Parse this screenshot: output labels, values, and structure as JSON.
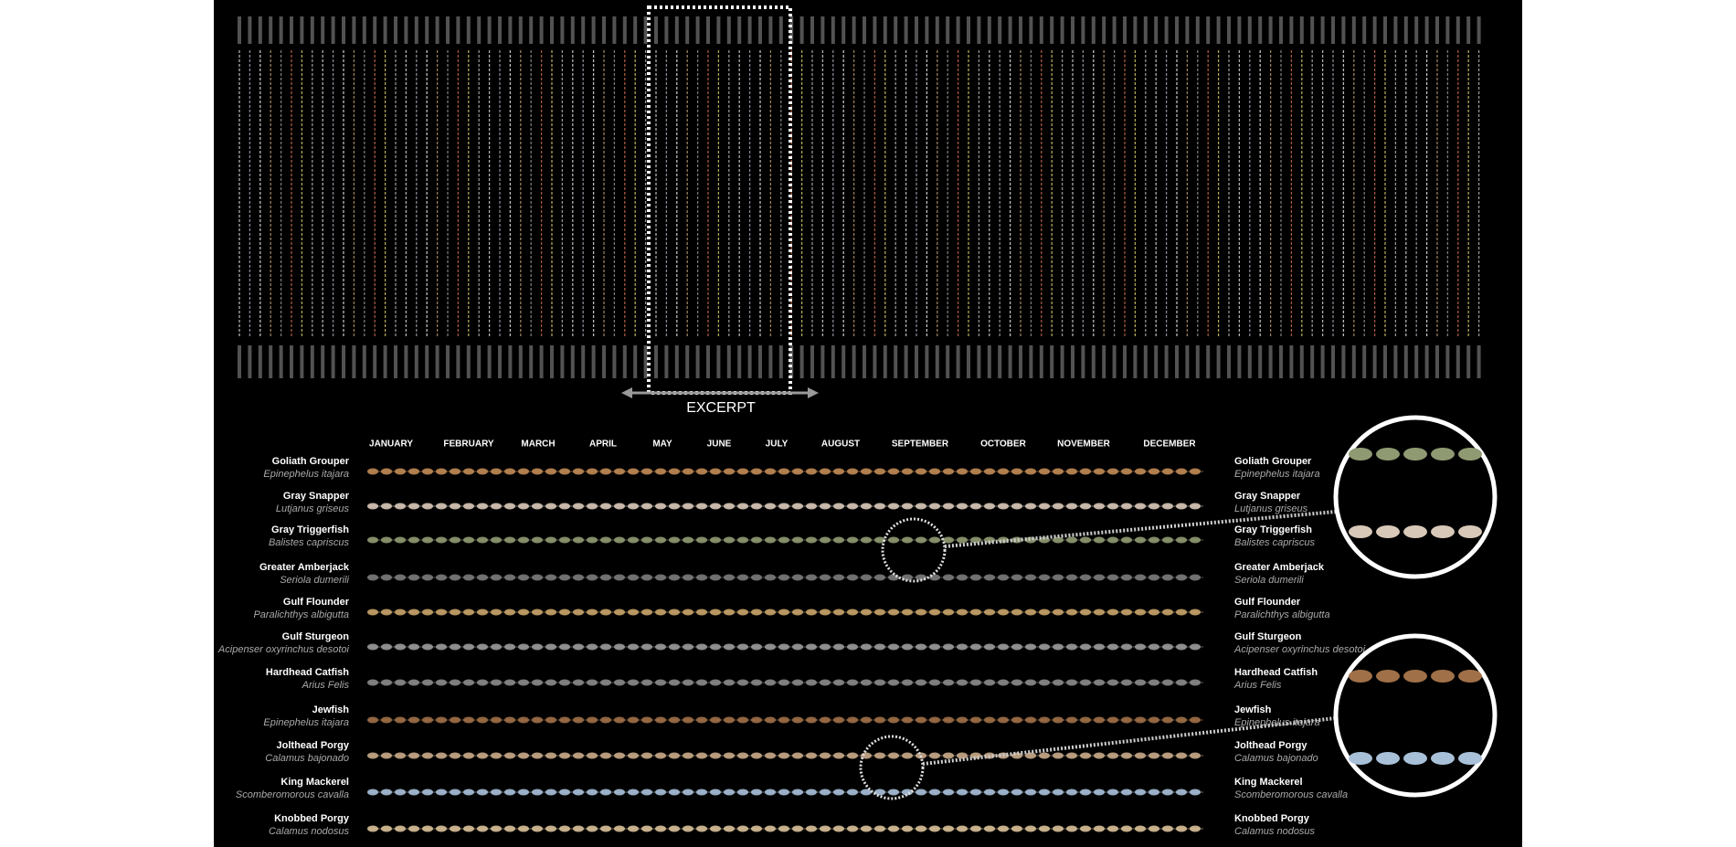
{
  "excerpt_label": "EXCERPT",
  "months": [
    "JANUARY",
    "FEBRUARY",
    "MARCH",
    "APRIL",
    "MAY",
    "JUNE",
    "JULY",
    "AUGUST",
    "SEPTEMBER",
    "OCTOBER",
    "NOVEMBER",
    "DECEMBER"
  ],
  "species": [
    {
      "name": "Goliath Grouper",
      "scientific": "Epinephelus itajara",
      "color": "#c08a55"
    },
    {
      "name": "Gray Snapper",
      "scientific": "Lutjanus griseus",
      "color": "#d8c8b8"
    },
    {
      "name": "Gray Triggerfish",
      "scientific": "Balistes capriscus",
      "color": "#8f9a72"
    },
    {
      "name": "Greater Amberjack",
      "scientific": "Seriola dumerili",
      "color": "#7a7a7a"
    },
    {
      "name": "Gulf Flounder",
      "scientific": "Paralichthys albigutta",
      "color": "#c9a46a"
    },
    {
      "name": "Gulf Sturgeon",
      "scientific": "Acipenser oxyrinchus desotoi",
      "color": "#9a9a9a"
    },
    {
      "name": "Hardhead Catfish",
      "scientific": "Arius Felis",
      "color": "#8a8a8a"
    },
    {
      "name": "Jewfish",
      "scientific": "Epinephelus itajara",
      "color": "#a07048"
    },
    {
      "name": "Jolthead Porgy",
      "scientific": "Calamus bajonado",
      "color": "#c8a888"
    },
    {
      "name": "King Mackerel",
      "scientific": "Scomberomorous cavalla",
      "color": "#a8c0d8"
    },
    {
      "name": "Knobbed Porgy",
      "scientific": "Calamus nodosus",
      "color": "#d8c098"
    }
  ]
}
